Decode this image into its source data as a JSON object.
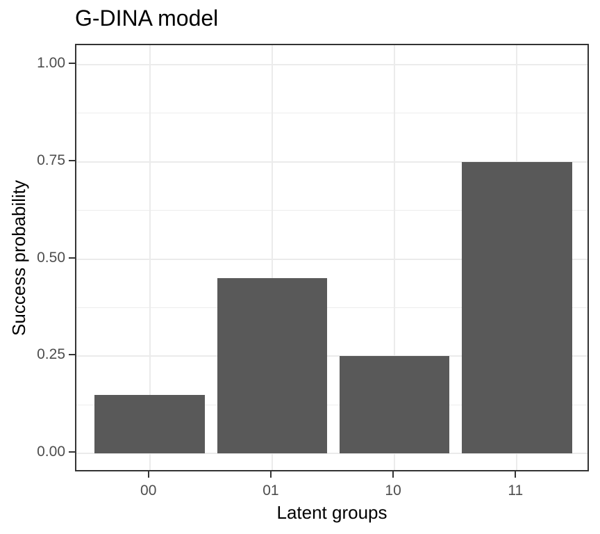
{
  "chart_data": {
    "type": "bar",
    "title": "G-DINA model",
    "xlabel": "Latent groups",
    "ylabel": "Success probability",
    "categories": [
      "00",
      "01",
      "10",
      "11"
    ],
    "values": [
      0.15,
      0.45,
      0.25,
      0.75
    ],
    "ylim": [
      0,
      1
    ],
    "yticks": [
      0,
      0.25,
      0.5,
      0.75,
      1
    ],
    "ytick_labels": [
      "0.00",
      "0.25",
      "0.50",
      "0.75",
      "1.00"
    ],
    "grid": "horizontal major+minor gridlines, vertical major gridlines at category centers",
    "legend_position": "none",
    "colors": {
      "bar": "#595959",
      "grid_major": "#ebebeb",
      "grid_minor": "#ededed",
      "panel_border": "#333333",
      "tick_text": "#4d4d4d",
      "title_text": "#000000",
      "background": "#ffffff"
    }
  }
}
